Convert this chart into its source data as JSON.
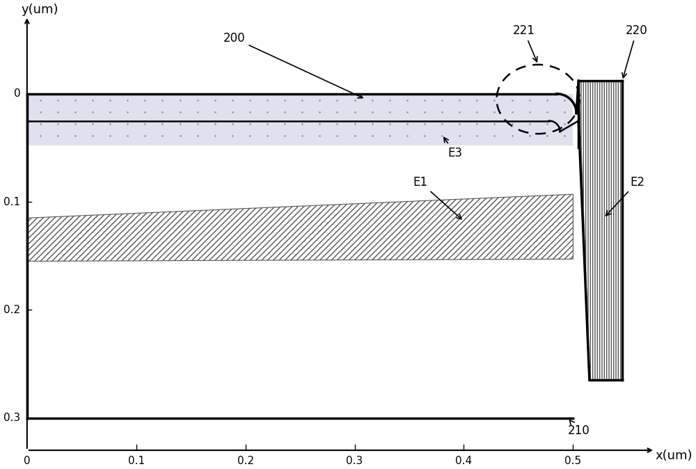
{
  "xlabel": "x(um)",
  "ylabel": "y(um)",
  "xlim": [
    -0.01,
    0.58
  ],
  "ylim": [
    0.335,
    -0.075
  ],
  "bg_color": "#ffffff",
  "label_200": "200",
  "label_210": "210",
  "label_220": "220",
  "label_221": "221",
  "label_E1": "E1",
  "label_E2": "E2",
  "label_E3": "E3",
  "e3_color": "#d0cfe8",
  "e3_dot_color": "#9090b0",
  "e1_hatch": "////",
  "e2_hatch": "|||"
}
